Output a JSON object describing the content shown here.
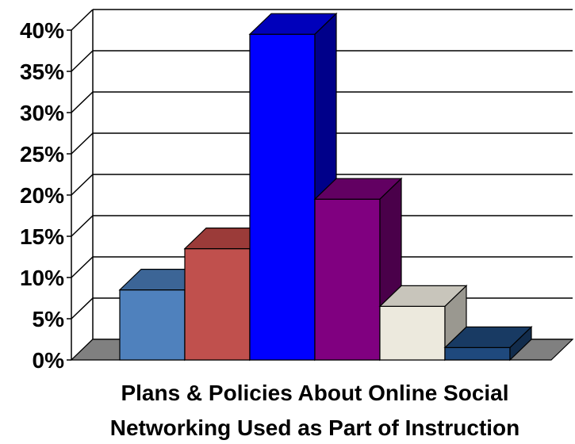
{
  "chart_data": {
    "type": "bar",
    "categories": [
      "",
      "",
      "",
      "",
      "",
      ""
    ],
    "values": [
      8.5,
      13.5,
      39.5,
      19.5,
      6.5,
      1.5
    ],
    "colors": [
      {
        "front": "#4f81bd",
        "top": "#3c6596",
        "side": "#304f77"
      },
      {
        "front": "#c0504d",
        "top": "#9b3b39",
        "side": "#7a2d2b"
      },
      {
        "front": "#0000ff",
        "top": "#0000bb",
        "side": "#00008a"
      },
      {
        "front": "#800080",
        "top": "#620062",
        "side": "#4a004a"
      },
      {
        "front": "#ece9dd",
        "top": "#c8c5bb",
        "side": "#9a9890"
      },
      {
        "front": "#1f497d",
        "top": "#183a63",
        "side": "#122c4c"
      }
    ],
    "ylim": [
      0,
      40
    ],
    "ticks": [
      0,
      5,
      10,
      15,
      20,
      25,
      30,
      35,
      40
    ],
    "tick_labels": [
      "0%",
      "5%",
      "10%",
      "15%",
      "20%",
      "25%",
      "30%",
      "35%",
      "40%"
    ],
    "xlabel_lines": [
      "Plans & Policies About Online Social",
      "Networking Used as Part of Instruction"
    ],
    "ylabel": "",
    "grid": true
  }
}
